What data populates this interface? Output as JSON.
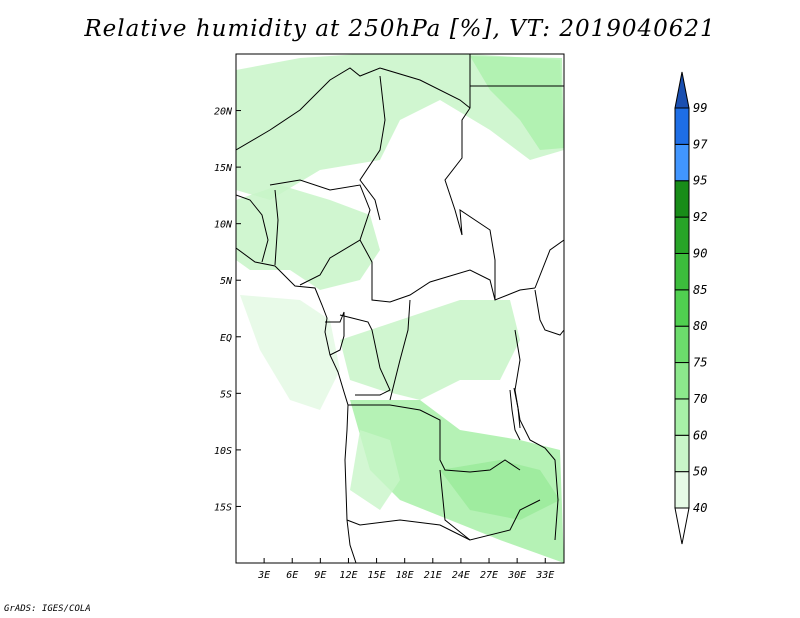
{
  "title": "Relative humidity at 250hPa [%], VT: 2019040621",
  "credit": "GrADS: IGES/COLA",
  "map": {
    "lon_range": [
      0,
      35
    ],
    "lat_range": [
      -20,
      25
    ],
    "lon_ticks": [
      {
        "value": 3,
        "label": "3E"
      },
      {
        "value": 6,
        "label": "6E"
      },
      {
        "value": 9,
        "label": "9E"
      },
      {
        "value": 12,
        "label": "12E"
      },
      {
        "value": 15,
        "label": "15E"
      },
      {
        "value": 18,
        "label": "18E"
      },
      {
        "value": 21,
        "label": "21E"
      },
      {
        "value": 24,
        "label": "24E"
      },
      {
        "value": 27,
        "label": "27E"
      },
      {
        "value": 30,
        "label": "30E"
      },
      {
        "value": 33,
        "label": "33E"
      }
    ],
    "lat_ticks": [
      {
        "value": 20,
        "label": "20N"
      },
      {
        "value": 15,
        "label": "15N"
      },
      {
        "value": 10,
        "label": "10N"
      },
      {
        "value": 5,
        "label": "5N"
      },
      {
        "value": 0,
        "label": "EQ"
      },
      {
        "value": -5,
        "label": "5S"
      },
      {
        "value": -10,
        "label": "10S"
      },
      {
        "value": -15,
        "label": "15S"
      }
    ]
  },
  "colorbar": {
    "levels": [
      "40",
      "50",
      "60",
      "70",
      "75",
      "80",
      "85",
      "90",
      "92",
      "95",
      "97",
      "99"
    ],
    "colors": [
      "#ffffff",
      "#e6fae6",
      "#c8f5c8",
      "#a8f0a8",
      "#8ce88c",
      "#6cdc6c",
      "#50d050",
      "#3cbc3c",
      "#28a428",
      "#188c18",
      "#4196ff",
      "#1e6ee6",
      "#1a4fb0"
    ]
  }
}
